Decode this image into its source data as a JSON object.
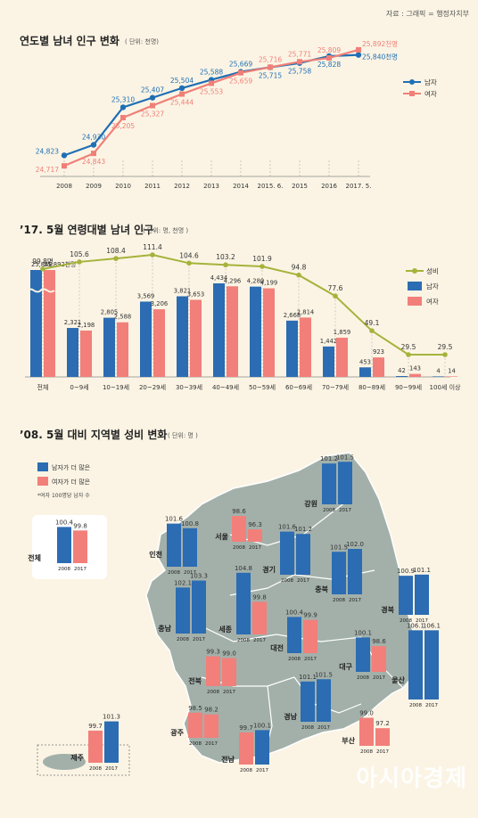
{
  "source": "자료 : 그래픽 = 행정자치부",
  "watermark": "아시아경제",
  "charts": [
    {
      "id": "chart1",
      "type": "line",
      "title": "연도별 남녀 인구 변화",
      "unit": "( 단위: 천명)",
      "categories": [
        "2008",
        "2009",
        "2010",
        "2011",
        "2012",
        "2013",
        "2014",
        "2015. 6.",
        "2015",
        "2016",
        "2017. 5."
      ],
      "series": [
        {
          "name": "남자",
          "color": "#1f6fb4",
          "values": [
            24823,
            24930,
            25310,
            25407,
            25504,
            25588,
            25669,
            25715,
            25758,
            25828,
            25840
          ],
          "labels": [
            "24,823",
            "24,930",
            "25,310",
            "25,407",
            "25,504",
            "25,588",
            "25,669",
            "25,715",
            "25,758",
            "25,828",
            "25,840천명"
          ]
        },
        {
          "name": "여자",
          "color": "#f07f78",
          "values": [
            24717,
            24843,
            25205,
            25327,
            25444,
            25553,
            25659,
            25716,
            25771,
            25809,
            25892
          ],
          "labels": [
            "24,717",
            "24,843",
            "25,205",
            "25,327",
            "25,444",
            "25,553",
            "25,659",
            "25,716",
            "25,771",
            "25,809",
            "25,892천명"
          ]
        }
      ]
    },
    {
      "id": "chart2",
      "type": "bar",
      "title": "’17. 5월 연령대별 남녀 인구",
      "unit": "( 단위: 명, 천명 )",
      "categories": [
        "전체",
        "0~9세",
        "10~19세",
        "20~29세",
        "30~39세",
        "40~49세",
        "50~59세",
        "60~69세",
        "70~79세",
        "80~89세",
        "90~99세",
        "100세 이상"
      ],
      "series": [
        {
          "name": "남자",
          "color": "#2b6cb3",
          "values": [
            25840,
            2321,
            2805,
            3569,
            3821,
            4434,
            4280,
            2668,
            1442,
            453,
            42,
            4
          ],
          "labels": [
            "25,840",
            "2,321",
            "2,805",
            "3,569",
            "3,821",
            "4,434",
            "4,280",
            "2,668",
            "1,442",
            "453",
            "42",
            "4"
          ]
        },
        {
          "name": "여자",
          "color": "#f27f7a",
          "values": [
            25892,
            2198,
            2588,
            3206,
            3653,
            4296,
            4199,
            2814,
            1859,
            923,
            143,
            14
          ],
          "labels": [
            "25,892천명",
            "2,198",
            "2,588",
            "3,206",
            "3,653",
            "4,296",
            "4,199",
            "2,814",
            "1,859",
            "923",
            "143",
            "14"
          ]
        },
        {
          "name": "성비",
          "color": "#a5b33b",
          "values": [
            99.8,
            105.6,
            108.4,
            111.4,
            104.6,
            103.2,
            101.9,
            94.8,
            77.6,
            49.1,
            29.5,
            29.5
          ],
          "labels": [
            "99.8명",
            "105.6",
            "108.4",
            "111.4",
            "104.6",
            "103.2",
            "101.9",
            "94.8",
            "77.6",
            "49.1",
            "29.5",
            "29.5"
          ]
        }
      ]
    },
    {
      "id": "chart3",
      "type": "bar",
      "title": "’08. 5월 대비 지역별 성비 변화",
      "unit": "( 단위: 명 )",
      "legend": {
        "male_more": "남자가 더 많은",
        "female_more": "여자가 더 많은",
        "note": "*여자 100명당 남자 수"
      },
      "years": [
        "2008",
        "2017"
      ],
      "colors": {
        "male_more": "#2b6cb3",
        "female_more": "#f27f7a"
      },
      "regions": [
        {
          "name": "전체",
          "v2008": 100.4,
          "v2017": 99.8,
          "l2008": "100.4",
          "l2017": "99.8"
        },
        {
          "name": "강원",
          "v2008": 101.2,
          "v2017": 101.5,
          "l2008": "101.2",
          "l2017": "101.5"
        },
        {
          "name": "인천",
          "v2008": 101.6,
          "v2017": 100.8,
          "l2008": "101.6",
          "l2017": "100.8"
        },
        {
          "name": "서울",
          "v2008": 98.6,
          "v2017": 96.3,
          "l2008": "98.6",
          "l2017": "96.3"
        },
        {
          "name": "경기",
          "v2008": 101.6,
          "v2017": 101.2,
          "l2008": "101.6",
          "l2017": "101.2"
        },
        {
          "name": "충북",
          "v2008": 101.5,
          "v2017": 102.0,
          "l2008": "101.5",
          "l2017": "102.0"
        },
        {
          "name": "충남",
          "v2008": 102.1,
          "v2017": 103.3,
          "l2008": "102.1",
          "l2017": "103.3"
        },
        {
          "name": "세종",
          "v2008": 104.8,
          "v2017": 99.8,
          "l2008": "104.8",
          "l2017": "99.8"
        },
        {
          "name": "경북",
          "v2008": 100.9,
          "v2017": 101.1,
          "l2008": "100.9",
          "l2017": "101.1"
        },
        {
          "name": "대전",
          "v2008": 100.4,
          "v2017": 99.9,
          "l2008": "100.4",
          "l2017": "99.9"
        },
        {
          "name": "대구",
          "v2008": 100.1,
          "v2017": 98.6,
          "l2008": "100.1",
          "l2017": "98.6"
        },
        {
          "name": "울산",
          "v2008": 106.1,
          "v2017": 106.1,
          "l2008": "106.1",
          "l2017": "106.1"
        },
        {
          "name": "전북",
          "v2008": 99.3,
          "v2017": 99.0,
          "l2008": "99.3",
          "l2017": "99.0"
        },
        {
          "name": "경남",
          "v2008": 101.1,
          "v2017": 101.5,
          "l2008": "101.1",
          "l2017": "101.5"
        },
        {
          "name": "광주",
          "v2008": 98.5,
          "v2017": 98.2,
          "l2008": "98.5",
          "l2017": "98.2"
        },
        {
          "name": "부산",
          "v2008": 99.0,
          "v2017": 97.2,
          "l2008": "99.0",
          "l2017": "97.2"
        },
        {
          "name": "전남",
          "v2008": 99.7,
          "v2017": 100.1,
          "l2008": "99.7",
          "l2017": "100.1"
        },
        {
          "name": "제주",
          "v2008": 99.7,
          "v2017": 101.3,
          "l2008": "99.7",
          "l2017": "101.3"
        }
      ]
    }
  ]
}
